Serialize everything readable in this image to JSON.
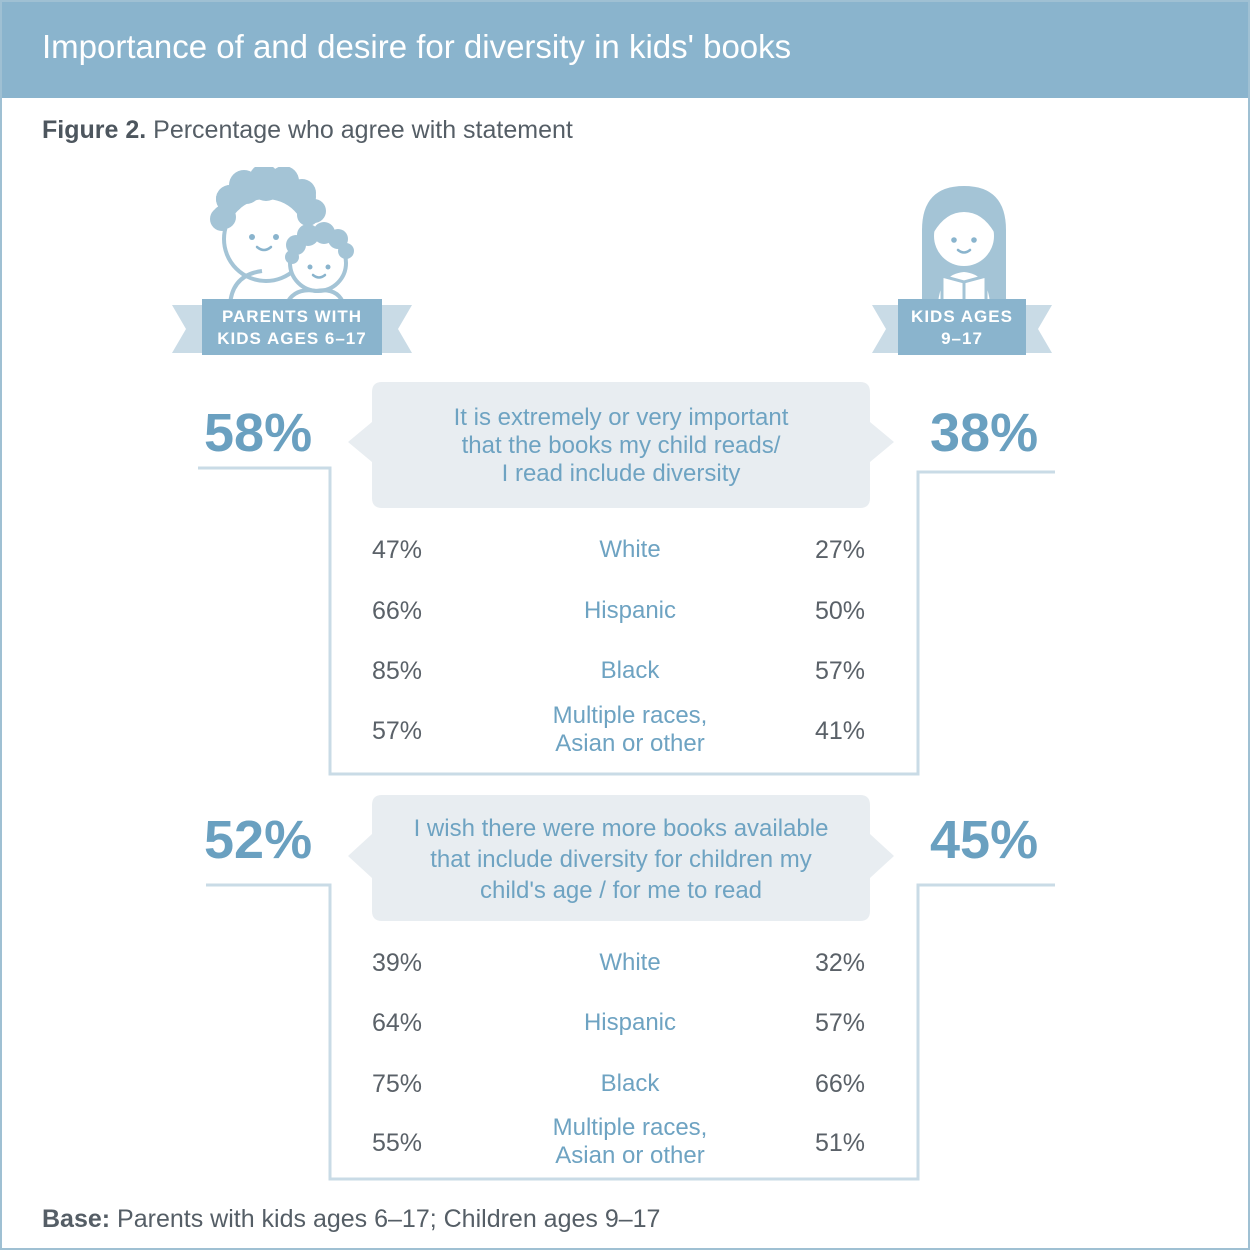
{
  "header": {
    "title": "Importance of and desire for diversity in kids' books"
  },
  "subtitle": {
    "figure": "Figure 2.",
    "text": "Percentage who agree with statement"
  },
  "groups": {
    "parents": {
      "line1": "PARENTS WITH",
      "line2": "KIDS AGES 6–17"
    },
    "kids": {
      "line1": "KIDS AGES",
      "line2": "9–17"
    }
  },
  "colors": {
    "accent": "#8ab4cd",
    "ribbon": "#8ab4cd",
    "panel": "#e8edf1",
    "label": "#6ea3c2",
    "value": "#5a6168"
  },
  "chart_data": {
    "type": "table",
    "series_keys": [
      "parents",
      "kids"
    ],
    "statements": [
      {
        "text_lines": [
          "It is extremely or very important",
          "that the books my child reads/",
          "I read include diversity"
        ],
        "parents": "58%",
        "kids": "38%",
        "rows": [
          {
            "label": "White",
            "parents": "47%",
            "kids": "27%"
          },
          {
            "label": "Hispanic",
            "parents": "66%",
            "kids": "50%"
          },
          {
            "label": "Black",
            "parents": "85%",
            "kids": "57%"
          },
          {
            "label_lines": [
              "Multiple races,",
              "Asian or other"
            ],
            "parents": "57%",
            "kids": "41%"
          }
        ]
      },
      {
        "text_lines": [
          "I wish there were more books available",
          "that include diversity for children my",
          "child's age / for me to read"
        ],
        "parents": "52%",
        "kids": "45%",
        "rows": [
          {
            "label": "White",
            "parents": "39%",
            "kids": "32%"
          },
          {
            "label": "Hispanic",
            "parents": "64%",
            "kids": "57%"
          },
          {
            "label": "Black",
            "parents": "75%",
            "kids": "66%"
          },
          {
            "label_lines": [
              "Multiple races,",
              "Asian or other"
            ],
            "parents": "55%",
            "kids": "51%"
          }
        ]
      }
    ]
  },
  "footer": {
    "base_label": "Base:",
    "base_text": "Parents with kids ages 6–17; Children ages 9–17"
  }
}
